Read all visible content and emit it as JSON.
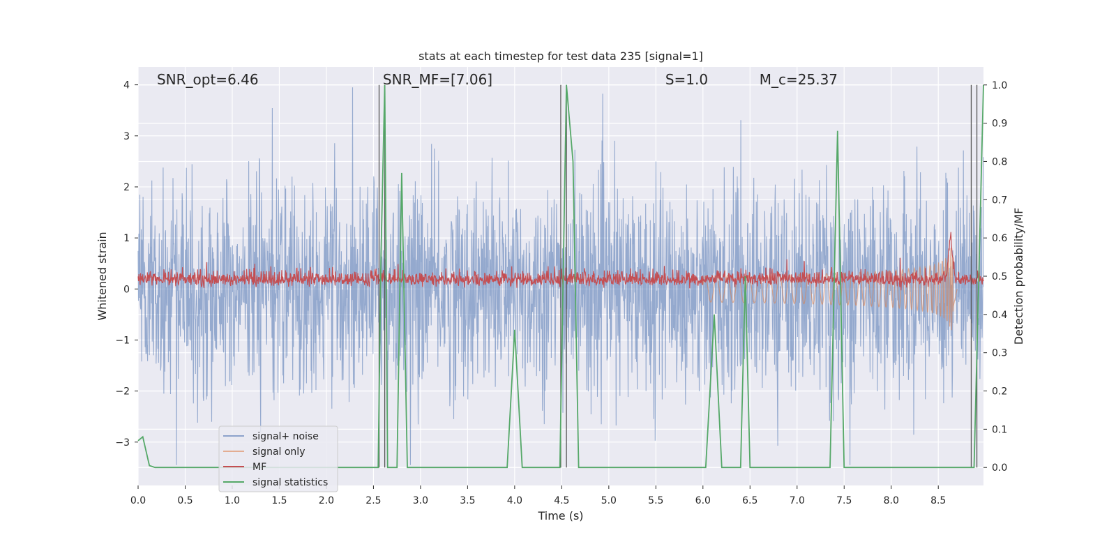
{
  "chart_data": {
    "type": "line",
    "title": "stats at each timestep for test data 235 [signal=1]",
    "xlabel": "Time (s)",
    "ylabel_left": "Whitened strain",
    "ylabel_right": "Detection probability/MF",
    "xlim": [
      0.0,
      8.98
    ],
    "ylim_left": [
      -3.85,
      4.35
    ],
    "ylim_right": [
      -0.047,
      1.047
    ],
    "x_ticks": [
      "0.0",
      "0.5",
      "1.0",
      "1.5",
      "2.0",
      "2.5",
      "3.0",
      "3.5",
      "4.0",
      "4.5",
      "5.0",
      "5.5",
      "6.0",
      "6.5",
      "7.0",
      "7.5",
      "8.0",
      "8.5"
    ],
    "y_left_ticks": [
      "−3",
      "−2",
      "−1",
      "0",
      "1",
      "2",
      "3",
      "4"
    ],
    "y_right_ticks": [
      "0.0",
      "0.1",
      "0.2",
      "0.3",
      "0.4",
      "0.5",
      "0.6",
      "0.7",
      "0.8",
      "0.9",
      "1.0"
    ],
    "grid": true,
    "legend_position": "lower-left",
    "annotations": [
      {
        "label": "SNR_opt=6.46",
        "x": 0.2
      },
      {
        "label": "SNR_MF=[7.06]",
        "x": 2.6
      },
      {
        "label": "S=1.0",
        "x": 5.6
      },
      {
        "label": "M_c=25.37",
        "x": 6.6
      }
    ],
    "vertical_lines": [
      2.56,
      2.62,
      4.49,
      4.55,
      8.85,
      8.91
    ],
    "series": [
      {
        "name": "signal+ noise",
        "color": "#4c72b0",
        "alpha": 0.5,
        "axis": "left",
        "description": "noisy whitened strain, roughly between -3.5 and 4"
      },
      {
        "name": "signal only",
        "color": "#dd8452",
        "alpha": 0.5,
        "axis": "left",
        "description": "chirp near 8.6 s with peak amplitude ~1.3"
      },
      {
        "name": "MF",
        "color": "#c44e52",
        "axis": "left",
        "description": "matched filter output oscillating around 0.2, spike to ~1.0 near 8.63 s"
      },
      {
        "name": "signal statistics",
        "color": "#55a868",
        "axis": "right",
        "x": [
          0.0,
          0.05,
          0.12,
          0.18,
          2.55,
          2.58,
          2.62,
          2.65,
          2.7,
          2.75,
          2.8,
          2.86,
          3.92,
          4.0,
          4.08,
          4.48,
          4.55,
          4.62,
          4.68,
          6.03,
          6.12,
          6.2,
          6.4,
          6.45,
          6.5,
          7.35,
          7.43,
          7.5,
          8.88,
          8.93,
          8.98
        ],
        "y": [
          0.07,
          0.08,
          0.005,
          0.0,
          0.0,
          0.55,
          1.0,
          0.0,
          0.0,
          0.0,
          0.77,
          0.0,
          0.0,
          0.36,
          0.0,
          0.0,
          1.0,
          0.8,
          0.0,
          0.0,
          0.4,
          0.0,
          0.0,
          0.5,
          0.0,
          0.0,
          0.88,
          0.0,
          0.0,
          0.5,
          1.0
        ]
      }
    ]
  },
  "legend": [
    {
      "label": "signal+ noise",
      "color": "#4c72b0"
    },
    {
      "label": "signal only",
      "color": "#dd8452"
    },
    {
      "label": "MF",
      "color": "#c44e52"
    },
    {
      "label": "signal statistics",
      "color": "#55a868"
    }
  ]
}
